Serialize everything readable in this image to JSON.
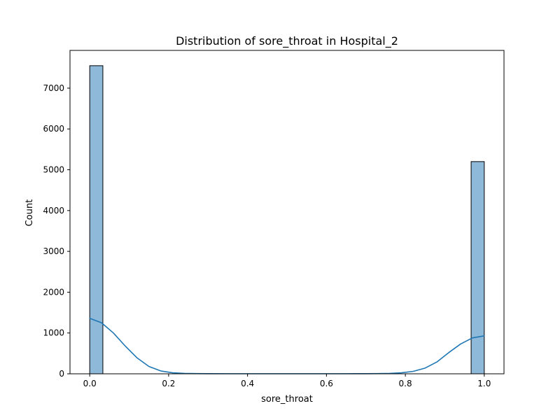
{
  "chart_data": {
    "type": "bar",
    "title": "Distribution of sore_throat in Hospital_2",
    "xlabel": "sore_throat",
    "ylabel": "Count",
    "xlim": [
      -0.05,
      1.05
    ],
    "ylim": [
      0,
      7925
    ],
    "x_ticks": [
      0.0,
      0.2,
      0.4,
      0.6,
      0.8,
      1.0
    ],
    "x_tick_labels": [
      "0.0",
      "0.2",
      "0.4",
      "0.6",
      "0.8",
      "1.0"
    ],
    "y_ticks": [
      0,
      1000,
      2000,
      3000,
      4000,
      5000,
      6000,
      7000
    ],
    "y_tick_labels": [
      "0",
      "1000",
      "2000",
      "3000",
      "4000",
      "5000",
      "6000",
      "7000"
    ],
    "bars": [
      {
        "x0": 0.0,
        "x1": 0.0333,
        "value": 7550
      },
      {
        "x0": 0.9667,
        "x1": 1.0,
        "value": 5200
      }
    ],
    "kde_line": {
      "x": [
        0.0,
        0.03,
        0.06,
        0.09,
        0.12,
        0.15,
        0.18,
        0.21,
        0.24,
        0.27,
        0.3,
        0.35,
        0.4,
        0.45,
        0.5,
        0.55,
        0.6,
        0.65,
        0.7,
        0.73,
        0.76,
        0.79,
        0.82,
        0.85,
        0.88,
        0.91,
        0.94,
        0.97,
        1.0
      ],
      "y": [
        1360,
        1250,
        1000,
        680,
        390,
        180,
        70,
        25,
        10,
        5,
        3,
        2,
        2,
        2,
        2,
        2,
        2,
        2,
        3,
        5,
        10,
        25,
        60,
        140,
        290,
        520,
        730,
        880,
        930
      ]
    },
    "colors": {
      "bar_fill": "#8fb9d9",
      "bar_edge": "#000000",
      "line": "#1f77b4"
    },
    "grid": false
  }
}
